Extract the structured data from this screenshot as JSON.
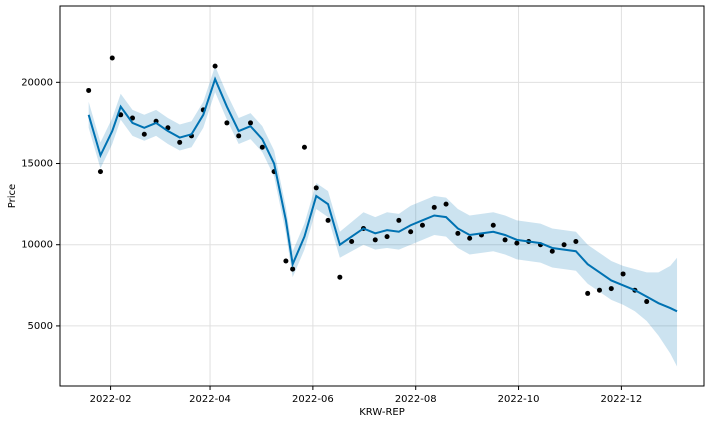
{
  "chart_data": {
    "type": "line",
    "x_label": "KRW-REP",
    "y_label": "Price",
    "x": [
      "2022-01-19",
      "2022-01-26",
      "2022-02-02",
      "2022-02-07",
      "2022-02-14",
      "2022-02-21",
      "2022-02-28",
      "2022-03-07",
      "2022-03-14",
      "2022-03-21",
      "2022-03-28",
      "2022-04-04",
      "2022-04-11",
      "2022-04-18",
      "2022-04-25",
      "2022-05-02",
      "2022-05-09",
      "2022-05-16",
      "2022-05-20",
      "2022-05-27",
      "2022-06-03",
      "2022-06-10",
      "2022-06-17",
      "2022-06-24",
      "2022-07-01",
      "2022-07-08",
      "2022-07-15",
      "2022-07-22",
      "2022-07-29",
      "2022-08-05",
      "2022-08-12",
      "2022-08-19",
      "2022-08-26",
      "2022-09-02",
      "2022-09-09",
      "2022-09-16",
      "2022-09-23",
      "2022-09-30",
      "2022-10-07",
      "2022-10-14",
      "2022-10-21",
      "2022-10-28",
      "2022-11-04",
      "2022-11-11",
      "2022-11-18",
      "2022-11-25",
      "2022-12-02",
      "2022-12-09",
      "2022-12-16",
      "2022-12-23",
      "2022-12-30",
      "2023-01-03"
    ],
    "series": [
      {
        "kind": "points",
        "color": "#000000",
        "values": [
          19500,
          14500,
          21500,
          18000,
          17800,
          16800,
          17600,
          17200,
          16300,
          16700,
          18300,
          21000,
          17500,
          16700,
          17500,
          16000,
          14500,
          9000,
          8500,
          16000,
          13500,
          11500,
          8000,
          10200,
          11000,
          10300,
          10500,
          11500,
          10800,
          11200,
          12300,
          12500,
          10700,
          10400,
          10600,
          11200,
          10300,
          10100,
          10200,
          10000,
          9600,
          10000,
          10200,
          7000,
          7200,
          7300,
          8200,
          7200,
          6500,
          null,
          null,
          null
        ]
      },
      {
        "kind": "line",
        "color": "#0072B2",
        "values": [
          18000,
          15500,
          17000,
          18500,
          17500,
          17200,
          17500,
          17000,
          16600,
          16800,
          18000,
          20200,
          18500,
          17000,
          17300,
          16500,
          15000,
          11500,
          8800,
          10500,
          13000,
          12500,
          10000,
          10500,
          11000,
          10700,
          10900,
          10800,
          11200,
          11500,
          11800,
          11700,
          11000,
          10600,
          10700,
          10800,
          10600,
          10300,
          10200,
          10100,
          9800,
          9700,
          9600,
          8800,
          8300,
          7800,
          7500,
          7200,
          6800,
          6400,
          6100,
          5900
        ]
      }
    ],
    "band": {
      "color": "#0072B2",
      "lower": [
        17200,
        14700,
        16200,
        17700,
        16700,
        16400,
        16700,
        16200,
        15800,
        16000,
        17200,
        19400,
        17700,
        16200,
        16500,
        15700,
        14200,
        10700,
        8000,
        9700,
        12200,
        11700,
        9200,
        9600,
        10000,
        9700,
        9800,
        9700,
        10000,
        10300,
        10600,
        10500,
        9800,
        9400,
        9500,
        9600,
        9400,
        9100,
        9000,
        8900,
        8600,
        8500,
        8400,
        7600,
        7100,
        6600,
        6300,
        5900,
        5300,
        4400,
        3300,
        2500
      ],
      "upper": [
        18800,
        16300,
        17800,
        19300,
        18300,
        18000,
        18300,
        17800,
        17400,
        17600,
        18800,
        21000,
        19300,
        17800,
        18100,
        17300,
        15800,
        12300,
        9600,
        11300,
        13800,
        13300,
        10800,
        11400,
        12000,
        11700,
        12000,
        11900,
        12400,
        12700,
        13000,
        12900,
        12200,
        11800,
        11900,
        12000,
        11800,
        11500,
        11400,
        11300,
        11000,
        10900,
        10800,
        10000,
        9500,
        9000,
        8700,
        8500,
        8300,
        8300,
        8700,
        9200
      ]
    },
    "ylim": [
      1300,
      24700
    ],
    "yticks": [
      5000,
      10000,
      15000,
      20000
    ],
    "xlim": [
      "2022-01-02",
      "2023-01-19"
    ],
    "xticks": [
      {
        "value": "2022-02-01",
        "label": "2022-02"
      },
      {
        "value": "2022-04-01",
        "label": "2022-04"
      },
      {
        "value": "2022-06-01",
        "label": "2022-06"
      },
      {
        "value": "2022-08-01",
        "label": "2022-08"
      },
      {
        "value": "2022-10-01",
        "label": "2022-10"
      },
      {
        "value": "2022-12-01",
        "label": "2022-12"
      }
    ],
    "grid": true
  }
}
